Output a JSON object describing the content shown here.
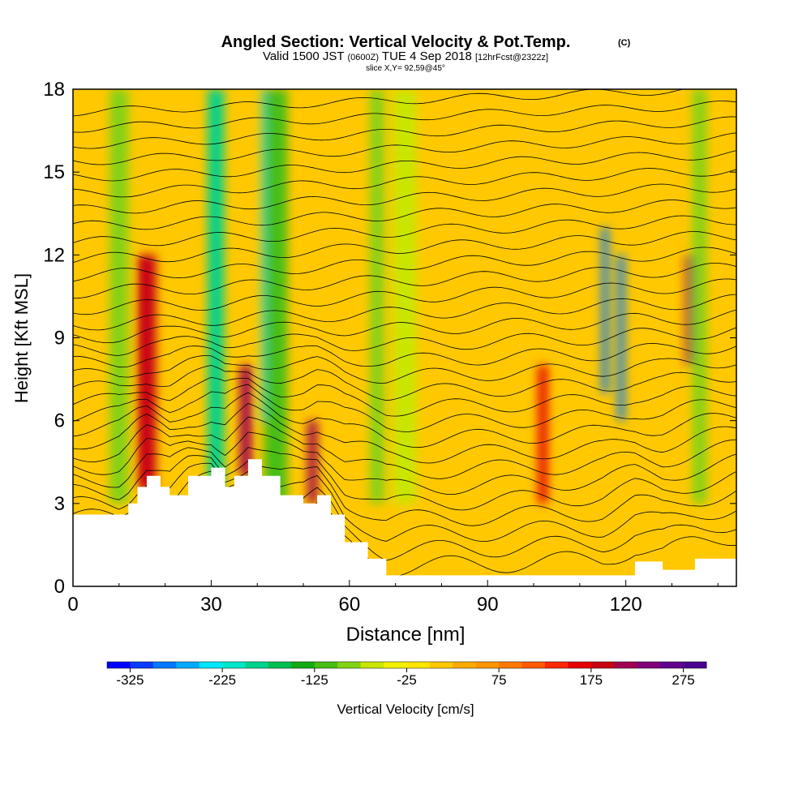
{
  "chart_data": {
    "type": "heatmap",
    "title": "Angled Section: Vertical Velocity & Pot.Temp.",
    "title_suffix": "(C)",
    "subtitle": {
      "prefix": "Valid 1500 JST",
      "zulu": "(0600Z)",
      "date": "TUE 4 Sep 2018",
      "forecast": "[12hrFcst@2322z]"
    },
    "slice_label": "slice X,Y= 92,59@45°",
    "xlabel": "Distance [nm]",
    "ylabel": "Height [Kft MSL]",
    "xlim": [
      0,
      144
    ],
    "ylim": [
      0,
      18
    ],
    "xticks": [
      0,
      30,
      60,
      90,
      120
    ],
    "yticks": [
      0,
      3,
      6,
      9,
      12,
      15,
      18
    ],
    "colorbar": {
      "label": "Vertical Velocity [cm/s]",
      "tick_labels": [
        "-325",
        "-225",
        "-125",
        "-25",
        "75",
        "175",
        "275"
      ],
      "tick_values": [
        -325,
        -225,
        -125,
        -25,
        75,
        175,
        275
      ],
      "range": [
        -350,
        300
      ],
      "colors": [
        "#0000ff",
        "#0a3cff",
        "#0078ff",
        "#00aaff",
        "#00e6ff",
        "#00e6c8",
        "#00d28c",
        "#00be50",
        "#14aa14",
        "#46be14",
        "#82d214",
        "#c8e600",
        "#f0f000",
        "#ffe600",
        "#ffc800",
        "#ffaa00",
        "#ff9600",
        "#ff7800",
        "#ff5a00",
        "#ff2800",
        "#e60000",
        "#c80014",
        "#a00050",
        "#800078",
        "#60008c",
        "#4b0090"
      ]
    },
    "velocity_bands": [
      {
        "x": 16,
        "w": 2.5,
        "ylo": 4.5,
        "yhi": 10,
        "value": 300
      },
      {
        "x": 16,
        "w": 4,
        "ylo": 3.5,
        "yhi": 12,
        "value": 180
      },
      {
        "x": 31,
        "w": 1.6,
        "ylo": 4,
        "yhi": 18,
        "value": -300
      },
      {
        "x": 31,
        "w": 3.5,
        "ylo": 3.5,
        "yhi": 18,
        "value": -200
      },
      {
        "x": 37.5,
        "w": 2.5,
        "ylo": 4,
        "yhi": 8,
        "value": 220
      },
      {
        "x": 42,
        "w": 2,
        "ylo": 6,
        "yhi": 18,
        "value": -250
      },
      {
        "x": 44,
        "w": 5,
        "ylo": 3,
        "yhi": 18,
        "value": -120
      },
      {
        "x": 52,
        "w": 2,
        "ylo": 3,
        "yhi": 6,
        "value": 220
      },
      {
        "x": 66,
        "w": 3,
        "ylo": 3,
        "yhi": 18,
        "value": -100
      },
      {
        "x": 72,
        "w": 5,
        "ylo": 3,
        "yhi": 18,
        "value": -60
      },
      {
        "x": 10,
        "w": 4,
        "ylo": 3,
        "yhi": 18,
        "value": -80
      },
      {
        "x": 102,
        "w": 2,
        "ylo": 3,
        "yhi": 8,
        "value": 150
      },
      {
        "x": 115.5,
        "w": 1.4,
        "ylo": 7,
        "yhi": 13,
        "value": -280
      },
      {
        "x": 119,
        "w": 1.4,
        "ylo": 6,
        "yhi": 12,
        "value": -300
      },
      {
        "x": 134,
        "w": 2,
        "ylo": 8,
        "yhi": 12,
        "value": 200
      },
      {
        "x": 136,
        "w": 3,
        "ylo": 3,
        "yhi": 18,
        "value": -80
      }
    ],
    "theta_contour_levels": 30,
    "terrain": [
      {
        "x": 0,
        "h": 2.6
      },
      {
        "x": 10,
        "h": 2.6
      },
      {
        "x": 12,
        "h": 3.0
      },
      {
        "x": 14,
        "h": 3.6
      },
      {
        "x": 16,
        "h": 4.0
      },
      {
        "x": 19,
        "h": 3.6
      },
      {
        "x": 21,
        "h": 3.3
      },
      {
        "x": 25,
        "h": 4.0
      },
      {
        "x": 30,
        "h": 4.3
      },
      {
        "x": 33,
        "h": 3.6
      },
      {
        "x": 35,
        "h": 4.0
      },
      {
        "x": 38,
        "h": 4.6
      },
      {
        "x": 41,
        "h": 4.0
      },
      {
        "x": 45,
        "h": 3.3
      },
      {
        "x": 50,
        "h": 3.0
      },
      {
        "x": 53,
        "h": 3.3
      },
      {
        "x": 56,
        "h": 2.6
      },
      {
        "x": 59,
        "h": 1.6
      },
      {
        "x": 64,
        "h": 1.0
      },
      {
        "x": 68,
        "h": 0.4
      },
      {
        "x": 115,
        "h": 0.4
      },
      {
        "x": 122,
        "h": 0.9
      },
      {
        "x": 128,
        "h": 0.6
      },
      {
        "x": 135,
        "h": 1.0
      },
      {
        "x": 144,
        "h": 1.3
      }
    ]
  }
}
